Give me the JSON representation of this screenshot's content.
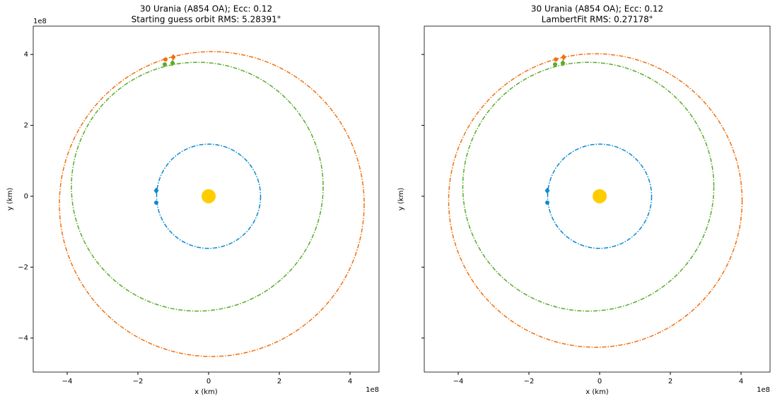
{
  "chart_data": [
    {
      "type": "orbit",
      "title": "30 Urania (A854 OA); Ecc: 0.12",
      "subtitle": "Starting guess orbit RMS: 5.28391\"",
      "xlabel": "x (km)",
      "ylabel": "y (km)",
      "x_offset": "1e8",
      "y_offset": "1e8",
      "xlim": [
        -4.96,
        4.82
      ],
      "ylim": [
        -4.96,
        4.8
      ],
      "xticks": [
        {
          "value": -4,
          "label": "−4"
        },
        {
          "value": -2,
          "label": "−2"
        },
        0,
        2,
        4
      ],
      "yticks": [
        {
          "value": -4,
          "label": "−4"
        },
        {
          "value": -2,
          "label": "−2"
        },
        0,
        2,
        4
      ],
      "sun": {
        "x": 0,
        "y": 0,
        "color": "#ffcc00"
      },
      "series": [
        {
          "color": "#0a8ad0",
          "center": [
            0,
            0
          ],
          "radii": [
            1.47,
            1.47
          ],
          "markers": [
            {
              "shape": "diamond",
              "x": -1.48,
              "y": 0.16
            },
            {
              "shape": "circle",
              "x": -1.48,
              "y": -0.18
            }
          ]
        },
        {
          "color": "#f0700f",
          "center": [
            0.09,
            -0.22
          ],
          "radii": [
            4.31,
            4.3
          ],
          "markers": [
            {
              "shape": "circle",
              "x": -1.22,
              "y": 3.86
            },
            {
              "shape": "diamond",
              "x": -1.0,
              "y": 3.92
            }
          ]
        },
        {
          "color": "#5aaa2a",
          "center": [
            -0.32,
            0.27
          ],
          "radii": [
            3.56,
            3.51
          ],
          "markers": [
            {
              "shape": "circle",
              "x": -1.24,
              "y": 3.72
            },
            {
              "shape": "diamond",
              "x": -1.02,
              "y": 3.76
            }
          ]
        }
      ]
    },
    {
      "type": "orbit",
      "title": "30 Urania (A854 OA); Ecc: 0.12",
      "subtitle": "LambertFit RMS: 0.27178\"",
      "xlabel": "x (km)",
      "ylabel": "y (km)",
      "x_offset": "1e8",
      "xlim": [
        -4.96,
        4.82
      ],
      "ylim": [
        -4.96,
        4.8
      ],
      "xticks": [
        {
          "value": -4,
          "label": "−4"
        },
        {
          "value": -2,
          "label": "−2"
        },
        0,
        2,
        4
      ],
      "yticks": [
        -4,
        -2,
        0,
        2,
        4
      ],
      "sun": {
        "x": 0,
        "y": 0,
        "color": "#ffcc00"
      },
      "series": [
        {
          "color": "#0a8ad0",
          "center": [
            0,
            0
          ],
          "radii": [
            1.47,
            1.47
          ],
          "markers": [
            {
              "shape": "diamond",
              "x": -1.48,
              "y": 0.16
            },
            {
              "shape": "circle",
              "x": -1.48,
              "y": -0.18
            }
          ]
        },
        {
          "color": "#f0700f",
          "center": [
            -0.12,
            -0.12
          ],
          "radii": [
            4.15,
            4.14
          ],
          "markers": [
            {
              "shape": "circle",
              "x": -1.24,
              "y": 3.86
            },
            {
              "shape": "diamond",
              "x": -1.02,
              "y": 3.92
            }
          ]
        },
        {
          "color": "#5aaa2a",
          "center": [
            -0.32,
            0.27
          ],
          "radii": [
            3.55,
            3.51
          ],
          "markers": [
            {
              "shape": "circle",
              "x": -1.26,
              "y": 3.72
            },
            {
              "shape": "diamond",
              "x": -1.04,
              "y": 3.76
            }
          ]
        }
      ]
    }
  ]
}
